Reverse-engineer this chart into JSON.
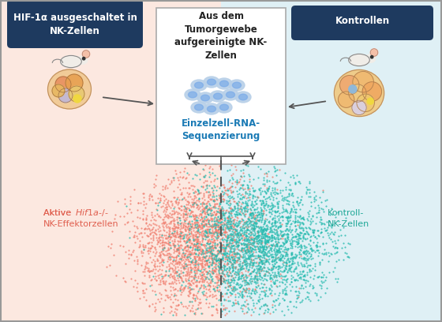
{
  "bg_left_color": "#fce8e0",
  "bg_right_color": "#dff0f5",
  "box_dark_blue": "#1e3a5f",
  "box_border_color": "#aaaaaa",
  "scatter_red_color": "#f08070",
  "scatter_teal_color": "#28bbb0",
  "label_red_color": "#e06050",
  "label_teal_color": "#20a898",
  "dashed_line_color": "#555555",
  "arrow_color": "#555555",
  "text_white": "#ffffff",
  "text_dark": "#222222",
  "scatter_n_red": 2500,
  "scatter_n_teal": 3000,
  "title_box_left": "HIF-1α ausgeschaltet in\nNK-Zellen",
  "title_box_right": "Kontrollen",
  "title_box_center": "Aus dem\nTumorgewebe\naufgereinigte NK-\nZellen",
  "center_label": "Einzelzell-RNA-\nSequenzierung",
  "outer_border_color": "#999999",
  "center_text_blue": "#1a7ab5",
  "seed": 42
}
